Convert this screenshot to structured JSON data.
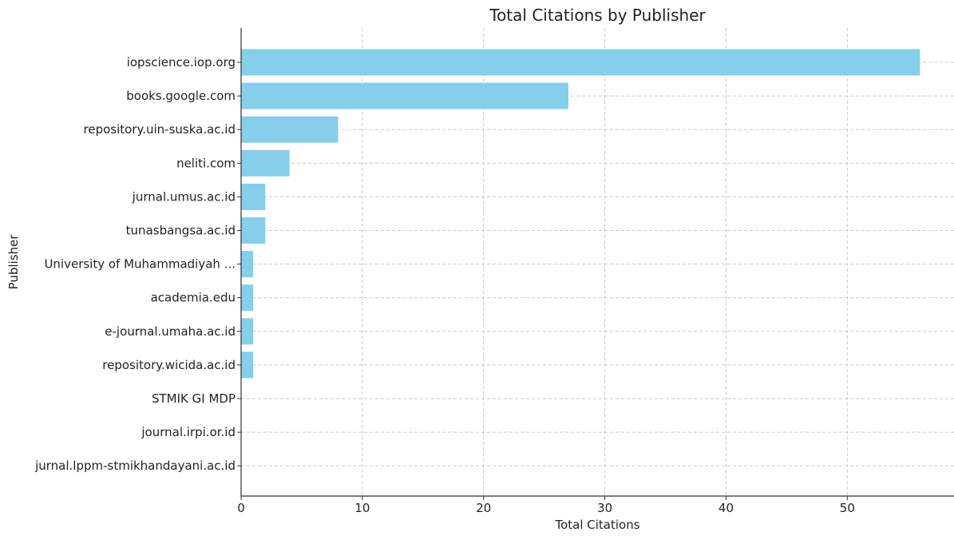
{
  "chart_data": {
    "type": "bar",
    "orientation": "horizontal",
    "title": "Total Citations by Publisher",
    "xlabel": "Total Citations",
    "ylabel": "Publisher",
    "xlim": [
      0,
      58.8
    ],
    "xticks": [
      0,
      10,
      20,
      30,
      40,
      50
    ],
    "grid": true,
    "bar_color": "#87CEEB",
    "categories": [
      "iopscience.iop.org",
      "books.google.com",
      "repository.uin-suska.ac.id",
      "neliti.com",
      "jurnal.umus.ac.id",
      "tunasbangsa.ac.id",
      "University of Muhammadiyah ...",
      "academia.edu",
      "e-journal.umaha.ac.id",
      "repository.wicida.ac.id",
      "STMIK GI MDP",
      "journal.irpi.or.id",
      "jurnal.lppm-stmikhandayani.ac.id"
    ],
    "values": [
      56,
      27,
      8,
      4,
      2,
      2,
      1,
      1,
      1,
      1,
      0,
      0,
      0
    ]
  }
}
